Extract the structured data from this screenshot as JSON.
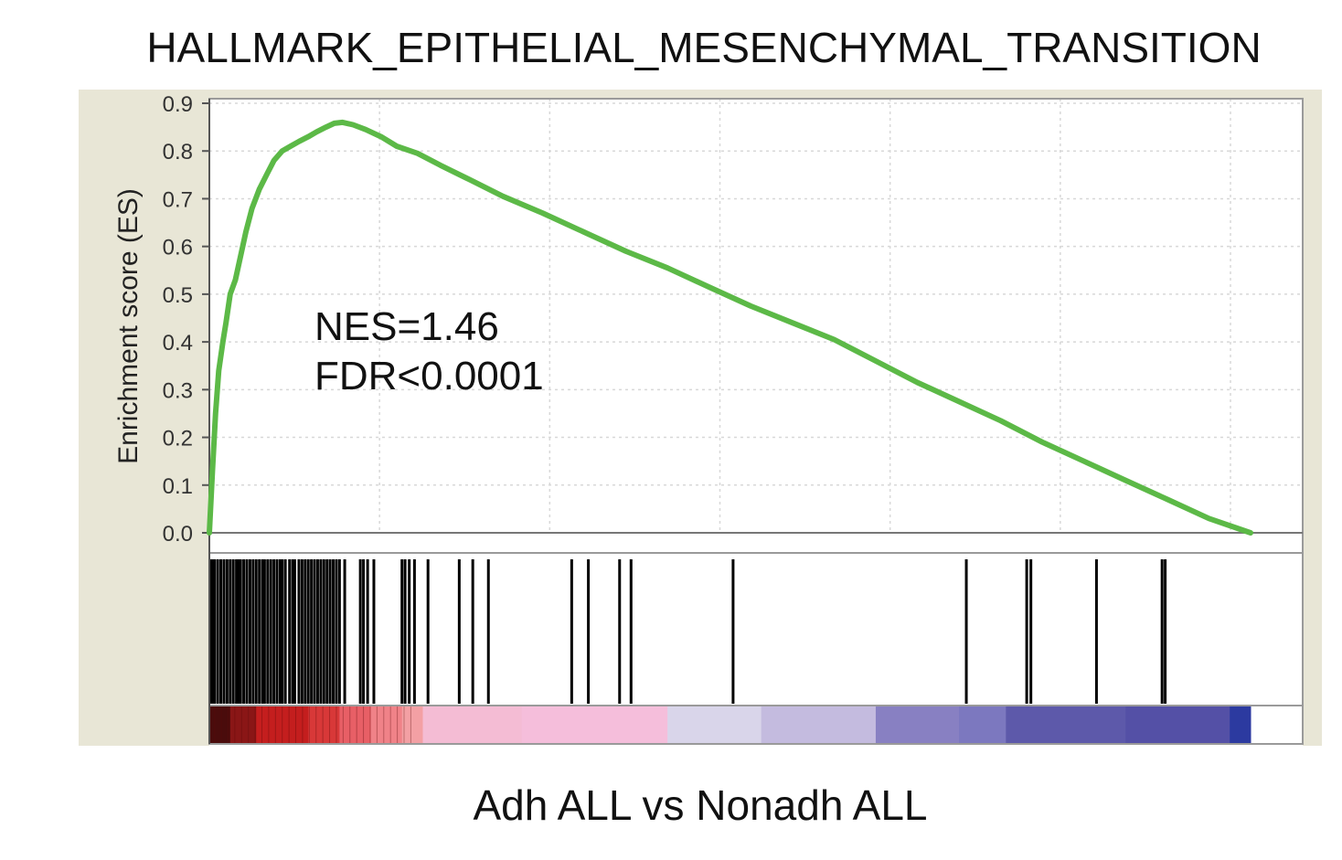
{
  "chart_data": {
    "type": "line",
    "title": "HALLMARK_EPITHELIAL_MESENCHYMAL_TRANSITION",
    "xlabel": "Adh ALL vs Nonadh ALL",
    "ylabel": "Enrichment score (ES)",
    "ylim": [
      0.0,
      0.9
    ],
    "yticks": [
      "0.0",
      "0.1",
      "0.2",
      "0.3",
      "0.4",
      "0.5",
      "0.6",
      "0.7",
      "0.8",
      "0.9"
    ],
    "grid": true,
    "annotations": [
      "NES=1.46",
      "FDR<0.0001"
    ],
    "series": [
      {
        "color": "#5cb947",
        "x": [
          0.0,
          0.003,
          0.006,
          0.009,
          0.013,
          0.016,
          0.02,
          0.025,
          0.03,
          0.035,
          0.041,
          0.048,
          0.055,
          0.062,
          0.07,
          0.078,
          0.086,
          0.095,
          0.103,
          0.112,
          0.12,
          0.128,
          0.138,
          0.15,
          0.165,
          0.18,
          0.2,
          0.222,
          0.25,
          0.282,
          0.32,
          0.36,
          0.4,
          0.44,
          0.48,
          0.52,
          0.56,
          0.6,
          0.64,
          0.68,
          0.72,
          0.76,
          0.8,
          0.84,
          0.88,
          0.92,
          0.96,
          1.0
        ],
        "y": [
          0.0,
          0.13,
          0.25,
          0.34,
          0.4,
          0.44,
          0.5,
          0.53,
          0.58,
          0.63,
          0.68,
          0.72,
          0.75,
          0.78,
          0.8,
          0.81,
          0.82,
          0.83,
          0.84,
          0.85,
          0.858,
          0.86,
          0.855,
          0.845,
          0.83,
          0.81,
          0.795,
          0.77,
          0.74,
          0.705,
          0.67,
          0.63,
          0.59,
          0.555,
          0.515,
          0.475,
          0.44,
          0.405,
          0.36,
          0.315,
          0.275,
          0.235,
          0.19,
          0.15,
          0.11,
          0.07,
          0.03,
          0.0
        ]
      }
    ],
    "hits": [
      0.001,
      0.003,
      0.005,
      0.008,
      0.011,
      0.014,
      0.017,
      0.02,
      0.023,
      0.026,
      0.028,
      0.03,
      0.033,
      0.036,
      0.039,
      0.042,
      0.045,
      0.048,
      0.051,
      0.053,
      0.056,
      0.059,
      0.062,
      0.065,
      0.068,
      0.07,
      0.073,
      0.077,
      0.08,
      0.082,
      0.086,
      0.089,
      0.092,
      0.095,
      0.098,
      0.101,
      0.104,
      0.107,
      0.11,
      0.113,
      0.116,
      0.119,
      0.122,
      0.125,
      0.13,
      0.145,
      0.148,
      0.152,
      0.158,
      0.185,
      0.188,
      0.192,
      0.197,
      0.21,
      0.24,
      0.253,
      0.268,
      0.348,
      0.364,
      0.394,
      0.405,
      0.503,
      0.727,
      0.785,
      0.789,
      0.852,
      0.915,
      0.918
    ],
    "rank_bar": [
      {
        "to": 0.02,
        "color": "#4a0c0c"
      },
      {
        "to": 0.045,
        "color": "#8a1616"
      },
      {
        "to": 0.095,
        "color": "#c41e1e"
      },
      {
        "to": 0.125,
        "color": "#d83838"
      },
      {
        "to": 0.155,
        "color": "#e85f66"
      },
      {
        "to": 0.185,
        "color": "#f08288"
      },
      {
        "to": 0.205,
        "color": "#f3a0a4"
      },
      {
        "to": 0.3,
        "color": "#f4bcd4"
      },
      {
        "to": 0.44,
        "color": "#f5bedb"
      },
      {
        "to": 0.53,
        "color": "#d9d5ea"
      },
      {
        "to": 0.64,
        "color": "#c4bbdf"
      },
      {
        "to": 0.72,
        "color": "#8880c2"
      },
      {
        "to": 0.765,
        "color": "#7c78bf"
      },
      {
        "to": 0.88,
        "color": "#5d59aa"
      },
      {
        "to": 0.98,
        "color": "#5450a6"
      },
      {
        "to": 1.0,
        "color": "#2c3aa0"
      }
    ]
  }
}
